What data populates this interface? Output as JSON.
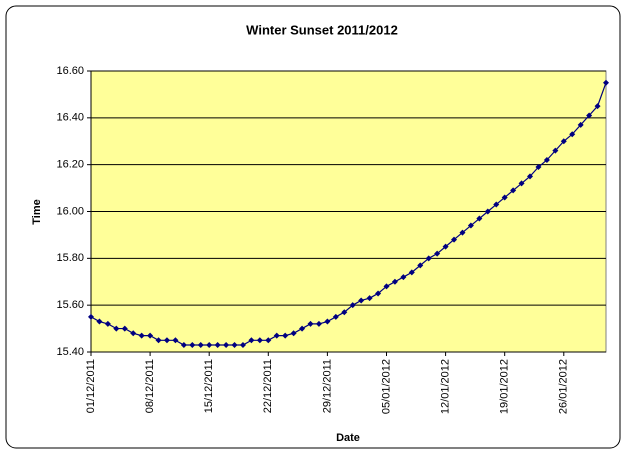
{
  "chart_data": {
    "type": "line",
    "title": "Winter Sunset 2011/2012",
    "xlabel": "Date",
    "ylabel": "Time",
    "categories": [
      "01/12/2011",
      null,
      null,
      null,
      null,
      null,
      null,
      "08/12/2011",
      null,
      null,
      null,
      null,
      null,
      null,
      "15/12/2011",
      null,
      null,
      null,
      null,
      null,
      null,
      "22/12/2011",
      null,
      null,
      null,
      null,
      null,
      null,
      "29/12/2011",
      null,
      null,
      null,
      null,
      null,
      null,
      "05/01/2012",
      null,
      null,
      null,
      null,
      null,
      null,
      "12/01/2012",
      null,
      null,
      null,
      null,
      null,
      null,
      "19/01/2012",
      null,
      null,
      null,
      null,
      null,
      null,
      "26/01/2012",
      null,
      null,
      null,
      null,
      null
    ],
    "series": [
      {
        "name": "Time",
        "color": "#000080",
        "values": [
          15.55,
          15.53,
          15.52,
          15.5,
          15.5,
          15.48,
          15.47,
          15.47,
          15.45,
          15.45,
          15.45,
          15.43,
          15.43,
          15.43,
          15.43,
          15.43,
          15.43,
          15.43,
          15.43,
          15.45,
          15.45,
          15.45,
          15.47,
          15.47,
          15.48,
          15.5,
          15.52,
          15.52,
          15.53,
          15.55,
          15.57,
          15.6,
          15.62,
          15.63,
          15.65,
          15.68,
          15.7,
          15.72,
          15.74,
          15.77,
          15.8,
          15.82,
          15.85,
          15.88,
          15.91,
          15.94,
          15.97,
          16.0,
          16.03,
          16.06,
          16.09,
          16.12,
          16.15,
          16.19,
          16.22,
          16.26,
          16.3,
          16.33,
          16.37,
          16.41,
          16.45,
          16.55
        ]
      }
    ],
    "ylim": [
      15.4,
      16.6
    ],
    "yticks": [
      {
        "value": 15.4,
        "label": "15.40"
      },
      {
        "value": 15.6,
        "label": "15.60"
      },
      {
        "value": 15.8,
        "label": "15.80"
      },
      {
        "value": 16.0,
        "label": "16.00"
      },
      {
        "value": 16.2,
        "label": "16.20"
      },
      {
        "value": 16.4,
        "label": "16.40"
      },
      {
        "value": 16.6,
        "label": "16.60"
      }
    ],
    "grid": true,
    "plot_background": "#ffff99"
  }
}
